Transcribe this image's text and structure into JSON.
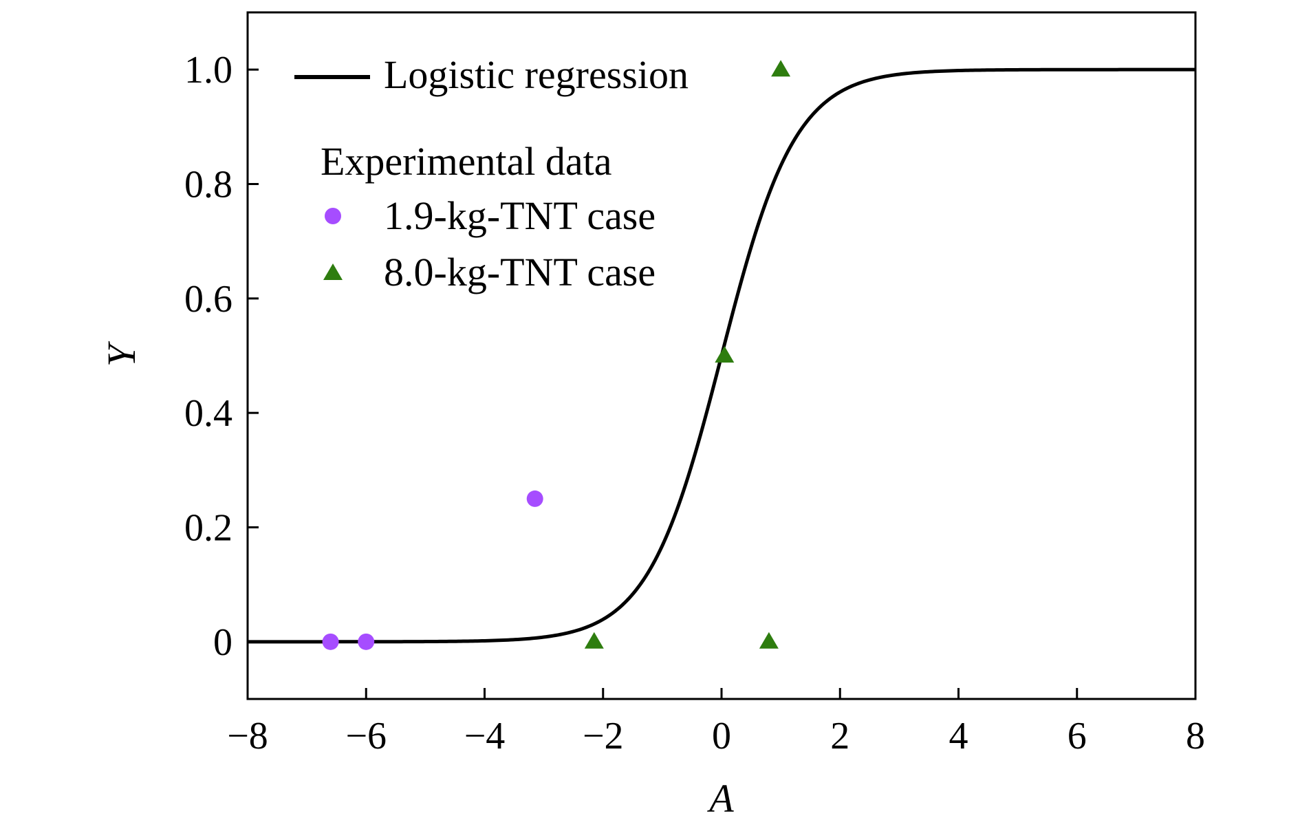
{
  "chart_data": {
    "type": "scatter",
    "xlabel": "A",
    "ylabel": "Y",
    "xlim": [
      -8,
      8
    ],
    "ylim": [
      -0.1,
      1.1
    ],
    "x_ticks": [
      "−8",
      "−6",
      "−4",
      "−2",
      "0",
      "2",
      "4",
      "6",
      "8"
    ],
    "y_ticks": [
      "0",
      "0.2",
      "0.4",
      "0.6",
      "0.8",
      "1.0"
    ],
    "x_tick_values": [
      -8,
      -6,
      -4,
      -2,
      0,
      2,
      4,
      6,
      8
    ],
    "y_tick_values": [
      0,
      0.2,
      0.4,
      0.6,
      0.8,
      1.0
    ],
    "grid": false,
    "legend_position": "top-left",
    "curve": {
      "name": "Logistic regression",
      "color": "#000000",
      "model": "logistic",
      "slope": 1.6,
      "x0": 0.0
    },
    "legend_group_title": "Experimental data",
    "series": [
      {
        "name": "1.9-kg-TNT case",
        "marker": "circle",
        "color": "#a64dff",
        "points": [
          [
            -6.6,
            0
          ],
          [
            -6.0,
            0
          ],
          [
            -3.15,
            0.25
          ]
        ]
      },
      {
        "name": "8.0-kg-TNT case",
        "marker": "triangle",
        "color": "#2e7d0f",
        "points": [
          [
            -2.15,
            0
          ],
          [
            0.05,
            0.5
          ],
          [
            0.8,
            0
          ],
          [
            1.0,
            1.0
          ]
        ]
      }
    ]
  }
}
